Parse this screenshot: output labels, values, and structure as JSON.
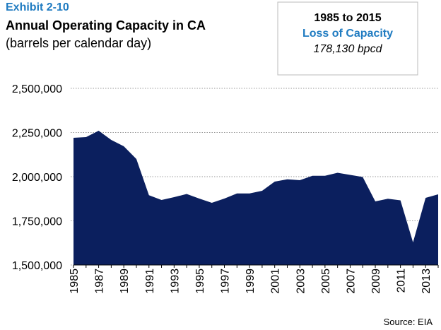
{
  "chart_data": {
    "type": "area",
    "exhibit": "Exhibit 2-10",
    "title": "Annual Operating Capacity in CA",
    "subtitle": "(barrels per calendar day)",
    "annotation": {
      "line1": "1985 to 2015",
      "line2": "Loss of Capacity",
      "line3": "178,130 bpcd"
    },
    "source": "Source: EIA",
    "categories": [
      "1985",
      null,
      "1987",
      null,
      "1989",
      null,
      "1991",
      null,
      "1993",
      null,
      "1995",
      null,
      "1997",
      null,
      "1999",
      null,
      "2001",
      null,
      "2003",
      null,
      "2005",
      null,
      "2007",
      null,
      "2009",
      null,
      "2011",
      null,
      "2013",
      null
    ],
    "values": [
      2220000,
      2224000,
      2260000,
      2208000,
      2172000,
      2100000,
      1895000,
      1868000,
      1884000,
      1902000,
      1876000,
      1852000,
      1876000,
      1905000,
      1905000,
      1920000,
      1972000,
      1985000,
      1980000,
      2005000,
      2005000,
      2022000,
      2010000,
      1998000,
      1860000,
      1875000,
      1866000,
      1628000,
      1880000,
      1900000
    ],
    "color": "#0b1f5e",
    "ylim": [
      1500000,
      2500000
    ],
    "yticks": [
      {
        "value": 1500000,
        "label": "1,500,000"
      },
      {
        "value": 1750000,
        "label": "1,750,000"
      },
      {
        "value": 2000000,
        "label": "2,000,000"
      },
      {
        "value": 2250000,
        "label": "2,250,000"
      },
      {
        "value": 2500000,
        "label": "2,500,000"
      }
    ],
    "grid": true
  }
}
